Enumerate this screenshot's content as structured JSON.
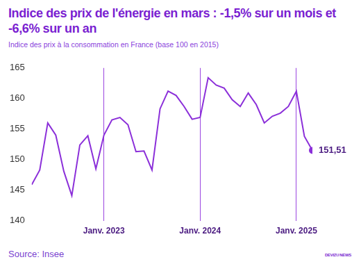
{
  "chart_data": {
    "type": "line",
    "title": "Indice des prix de l'énergie en mars : -1,5% sur un mois et -6,6% sur un an",
    "subtitle": "Indice des prix à la consommation en France (base 100 en 2015)",
    "source": "Source: Insee",
    "brand": "DEVIZU",
    "brand_suffix": "NEWS",
    "categories": [
      null,
      null,
      null,
      null,
      null,
      null,
      null,
      null,
      null,
      "Janv. 2023",
      null,
      null,
      null,
      null,
      null,
      null,
      null,
      null,
      null,
      null,
      null,
      "Janv. 2024",
      null,
      null,
      null,
      null,
      null,
      null,
      null,
      null,
      null,
      null,
      null,
      "Janv. 2025",
      null,
      null
    ],
    "values": [
      145.9,
      148.3,
      156.0,
      154.0,
      148.1,
      144.1,
      152.4,
      153.9,
      148.5,
      154.0,
      156.5,
      156.9,
      155.7,
      151.3,
      151.4,
      148.3,
      158.3,
      161.2,
      160.5,
      158.7,
      156.6,
      156.9,
      163.4,
      162.2,
      161.7,
      159.8,
      158.7,
      160.9,
      159.0,
      156.0,
      157.1,
      157.6,
      158.7,
      161.2,
      153.8,
      151.51
    ],
    "color": "#8b2fd9",
    "ylim": [
      140,
      165
    ],
    "yticks": [
      140,
      145,
      150,
      155,
      160,
      165
    ],
    "grid": "x",
    "annotation": {
      "text": "151,51",
      "value": 151.51
    }
  }
}
